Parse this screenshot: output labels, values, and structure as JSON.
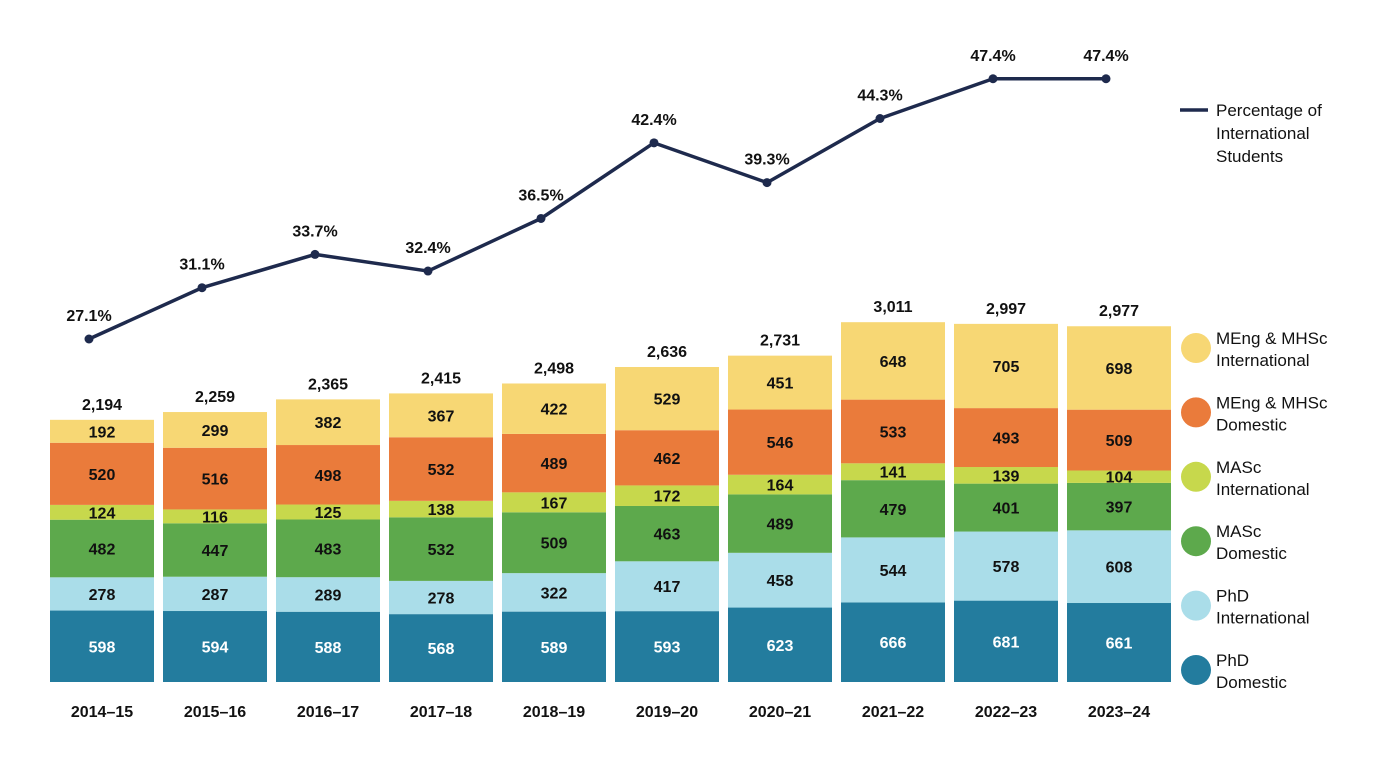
{
  "chart_data": {
    "type": "bar",
    "stacked": true,
    "categories": [
      "2014–15",
      "2015–16",
      "2016–17",
      "2017–18",
      "2018–19",
      "2019–20",
      "2020–21",
      "2021–22",
      "2022–23",
      "2023–24"
    ],
    "series": [
      {
        "name": "PhD Domestic",
        "color": "#237c9e",
        "label_color": "#ffffff",
        "values": [
          598,
          594,
          588,
          568,
          589,
          593,
          623,
          666,
          681,
          661
        ]
      },
      {
        "name": "PhD International",
        "color": "#aadde9",
        "label_color": "#111111",
        "values": [
          278,
          287,
          289,
          278,
          322,
          417,
          458,
          544,
          578,
          608
        ]
      },
      {
        "name": "MASc Domestic",
        "color": "#5da94c",
        "label_color": "#111111",
        "values": [
          482,
          447,
          483,
          532,
          509,
          463,
          489,
          479,
          401,
          397
        ]
      },
      {
        "name": "MASc International",
        "color": "#c7d84c",
        "label_color": "#111111",
        "values": [
          124,
          116,
          125,
          138,
          167,
          172,
          164,
          141,
          139,
          104
        ]
      },
      {
        "name": "MEng & MHSc Domestic",
        "color": "#ea7b3b",
        "label_color": "#111111",
        "values": [
          520,
          516,
          498,
          532,
          489,
          462,
          546,
          533,
          493,
          509
        ]
      },
      {
        "name": "MEng & MHSc International",
        "color": "#f7d774",
        "label_color": "#111111",
        "values": [
          192,
          299,
          382,
          367,
          422,
          529,
          451,
          648,
          705,
          698
        ]
      }
    ],
    "totals": [
      "2,194",
      "2,259",
      "2,365",
      "2,415",
      "2,498",
      "2,636",
      "2,731",
      "3,011",
      "2,997",
      "2,977"
    ],
    "line": {
      "name": "Percentage of International Students",
      "color": "#1e2a4d",
      "values": [
        27.1,
        31.1,
        33.7,
        32.4,
        36.5,
        42.4,
        39.3,
        44.3,
        47.4,
        47.4
      ],
      "labels": [
        "27.1%",
        "31.1%",
        "33.7%",
        "32.4%",
        "36.5%",
        "42.4%",
        "39.3%",
        "44.3%",
        "47.4%",
        "47.4%"
      ]
    },
    "legend": {
      "line_lines": [
        "Percentage of",
        "International",
        "Students"
      ],
      "items": [
        {
          "lines": [
            "MEng & MHSc",
            "International"
          ],
          "color": "#f7d774"
        },
        {
          "lines": [
            "MEng & MHSc",
            "Domestic"
          ],
          "color": "#ea7b3b"
        },
        {
          "lines": [
            "MASc",
            "International"
          ],
          "color": "#c7d84c"
        },
        {
          "lines": [
            "MASc",
            "Domestic"
          ],
          "color": "#5da94c"
        },
        {
          "lines": [
            "PhD",
            "International"
          ],
          "color": "#aadde9"
        },
        {
          "lines": [
            "PhD",
            "Domestic"
          ],
          "color": "#237c9e"
        }
      ],
      "position": "right"
    },
    "title": "",
    "xlabel": "",
    "ylabel": "",
    "grid": false
  }
}
